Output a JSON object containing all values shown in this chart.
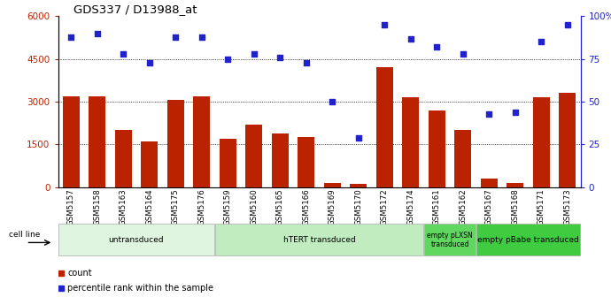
{
  "title": "GDS337 / D13988_at",
  "samples": [
    "GSM5157",
    "GSM5158",
    "GSM5163",
    "GSM5164",
    "GSM5175",
    "GSM5176",
    "GSM5159",
    "GSM5160",
    "GSM5165",
    "GSM5166",
    "GSM5169",
    "GSM5170",
    "GSM5172",
    "GSM5174",
    "GSM5161",
    "GSM5162",
    "GSM5167",
    "GSM5168",
    "GSM5171",
    "GSM5173"
  ],
  "counts": [
    3200,
    3200,
    2000,
    1600,
    3050,
    3200,
    1700,
    2200,
    1900,
    1750,
    150,
    120,
    4200,
    3150,
    2700,
    2000,
    300,
    150,
    3150,
    3300
  ],
  "percentiles": [
    88,
    90,
    78,
    73,
    88,
    88,
    75,
    78,
    76,
    73,
    50,
    29,
    95,
    87,
    82,
    78,
    43,
    44,
    85,
    95
  ],
  "bar_color": "#bb2200",
  "dot_color": "#2222cc",
  "ylim_left": [
    0,
    6000
  ],
  "ylim_right": [
    0,
    100
  ],
  "yticks_left": [
    0,
    1500,
    3000,
    4500,
    6000
  ],
  "yticks_right": [
    0,
    25,
    50,
    75,
    100
  ],
  "groups": [
    {
      "label": "untransduced",
      "start": 0,
      "end": 6,
      "color": "#e0f5e0"
    },
    {
      "label": "hTERT transduced",
      "start": 6,
      "end": 14,
      "color": "#c0ecc0"
    },
    {
      "label": "empty pLXSN\ntransduced",
      "start": 14,
      "end": 16,
      "color": "#60d860"
    },
    {
      "label": "empty pBabe transduced",
      "start": 16,
      "end": 20,
      "color": "#40cc40"
    }
  ],
  "cell_line_label": "cell line",
  "legend_count": "count",
  "legend_percentile": "percentile rank within the sample",
  "background_color": "#ffffff"
}
